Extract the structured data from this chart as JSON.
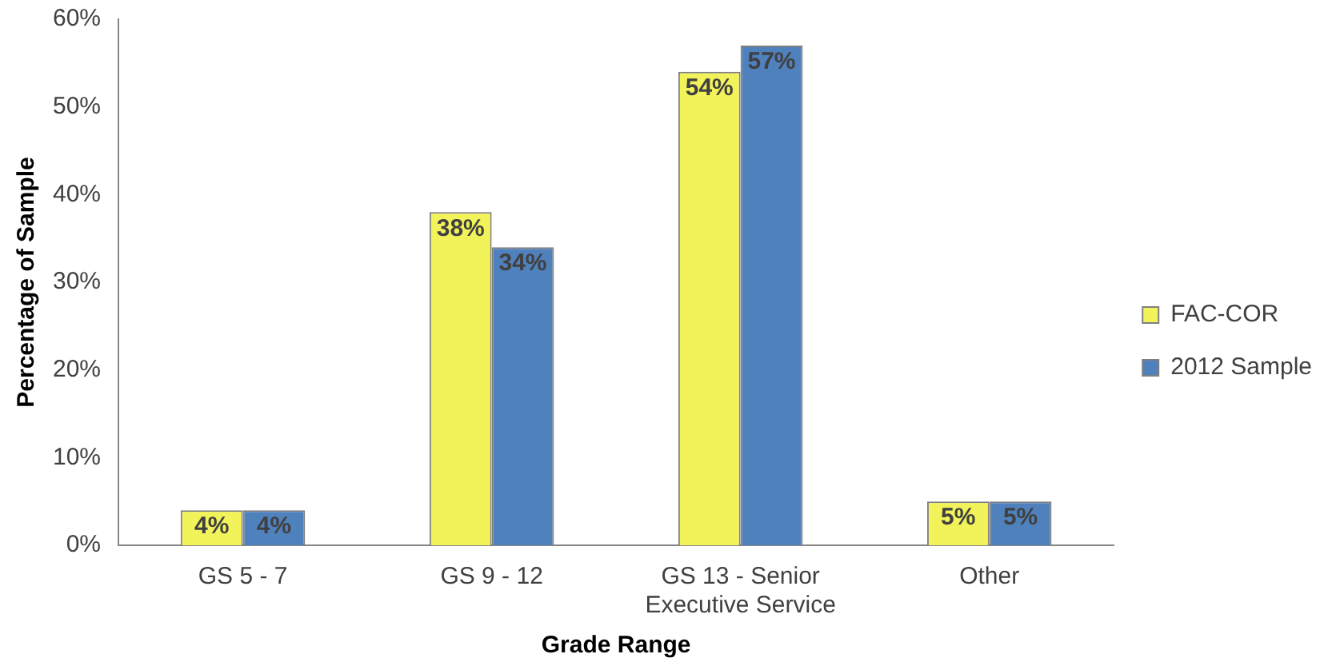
{
  "chart_data": {
    "type": "bar",
    "xlabel": "Grade Range",
    "ylabel": "Percentage of Sample",
    "categories": [
      "GS 5 - 7",
      "GS 9 - 12",
      "GS 13 - Senior Executive Service",
      "Other"
    ],
    "series": [
      {
        "name": "FAC-COR",
        "color": "#f2f25a",
        "values": [
          4,
          38,
          54,
          5
        ],
        "value_labels": [
          "4%",
          "38%",
          "54%",
          "5%"
        ]
      },
      {
        "name": "2012 Sample",
        "color": "#4f81bd",
        "values": [
          4,
          34,
          57,
          5
        ],
        "value_labels": [
          "4%",
          "34%",
          "57%",
          "5%"
        ]
      }
    ],
    "ylim": [
      0,
      60
    ],
    "yticks": [
      {
        "value": 0,
        "label": "0%"
      },
      {
        "value": 10,
        "label": "10%"
      },
      {
        "value": 20,
        "label": "20%"
      },
      {
        "value": 30,
        "label": "30%"
      },
      {
        "value": 40,
        "label": "40%"
      },
      {
        "value": 50,
        "label": "50%"
      },
      {
        "value": 60,
        "label": "60%"
      }
    ],
    "grid": false,
    "legend": "right"
  }
}
